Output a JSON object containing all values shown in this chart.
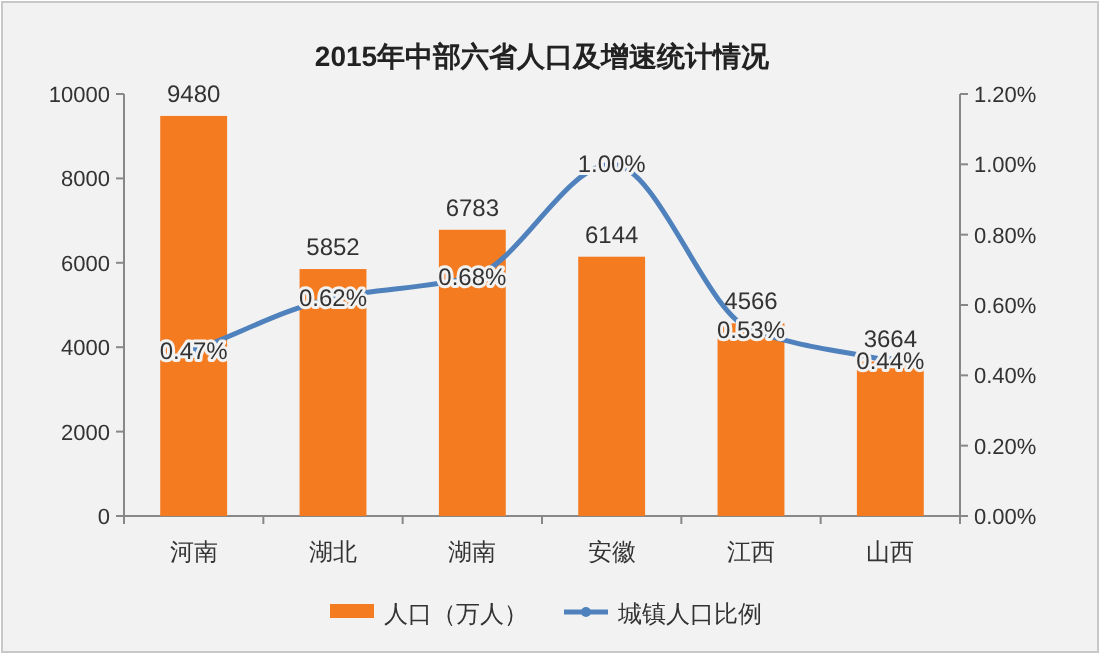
{
  "chart_data": {
    "type": "bar",
    "title": "2015年中部六省人口及增速统计情况",
    "categories": [
      "河南",
      "湖北",
      "湖南",
      "安徽",
      "江西",
      "山西"
    ],
    "series": [
      {
        "name": "人口（万人）",
        "color": "#f47b20",
        "values": [
          9480,
          5852,
          6783,
          6144,
          4566,
          3664
        ]
      },
      {
        "name": "城镇人口比例",
        "type": "line",
        "axis": "y2",
        "color": "#4f81bd",
        "marker": "circle",
        "values": [
          0.47,
          0.62,
          0.68,
          1.0,
          0.53,
          0.44
        ],
        "value_labels": [
          "0.47%",
          "0.62%",
          "0.68%",
          "1.00%",
          "0.53%",
          "0.44%"
        ]
      }
    ],
    "data_labels": true,
    "ylim": [
      0,
      10000
    ],
    "yticks": [
      0,
      2000,
      4000,
      6000,
      8000,
      10000
    ],
    "y2lim": [
      0,
      1.2
    ],
    "y2ticks": [
      {
        "value": 0,
        "label": "0.00%"
      },
      {
        "value": 0.2,
        "label": "0.20%"
      },
      {
        "value": 0.4,
        "label": "0.40%"
      },
      {
        "value": 0.6,
        "label": "0.60%"
      },
      {
        "value": 0.8,
        "label": "0.80%"
      },
      {
        "value": 1.0,
        "label": "1.00%"
      },
      {
        "value": 1.2,
        "label": "1.20%"
      }
    ],
    "legend": "bottom"
  }
}
